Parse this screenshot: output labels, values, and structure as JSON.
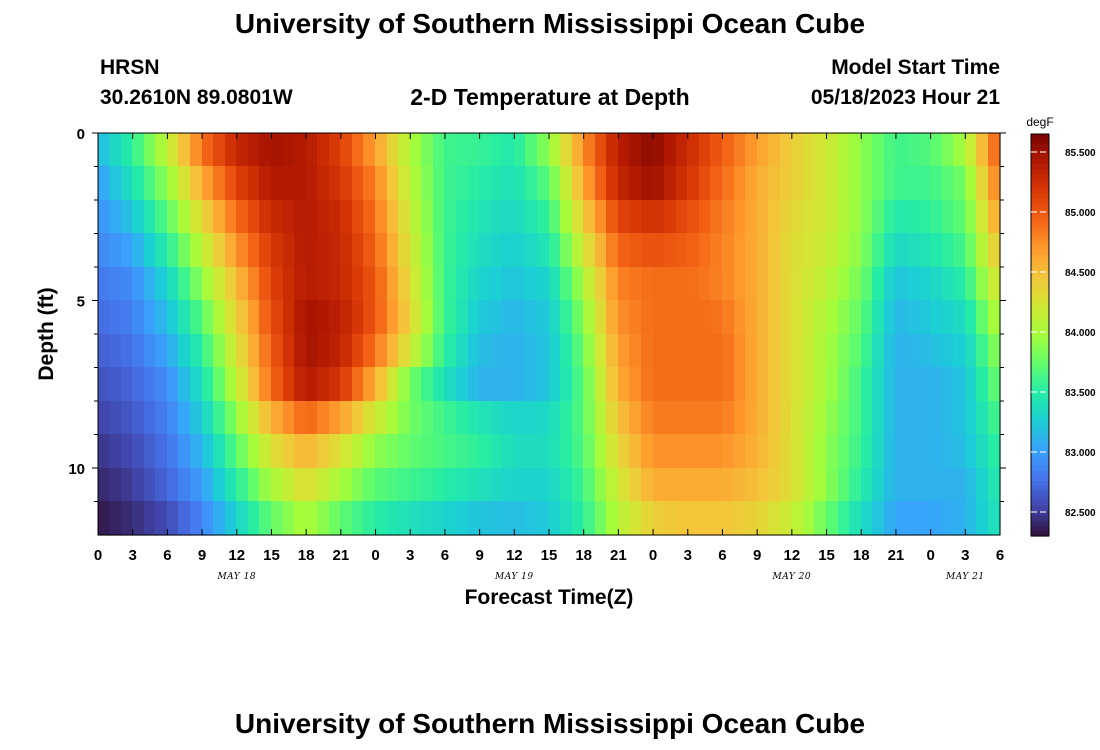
{
  "page": {
    "title_top": "University of Southern Mississippi Ocean Cube",
    "title_bottom": "University of Southern Mississippi Ocean Cube",
    "station": "HRSN",
    "location": "30.2610N  89.0801W",
    "model_start_label": "Model Start Time",
    "model_start_value": "05/18/2023 Hour 21"
  },
  "chart_data": {
    "type": "heatmap",
    "title": "2-D Temperature at Depth",
    "xlabel": "Forecast Time(Z)",
    "ylabel": "Depth (ft)",
    "x_tick_labels": [
      "0",
      "3",
      "6",
      "9",
      "12",
      "15",
      "18",
      "21",
      "0",
      "3",
      "6",
      "9",
      "12",
      "15",
      "18",
      "21",
      "0",
      "3",
      "6",
      "9",
      "12",
      "15",
      "18",
      "21",
      "0",
      "3",
      "6"
    ],
    "x_range_hours": [
      0,
      78
    ],
    "x_tick_step_hours": 3,
    "date_labels": [
      {
        "label": "MAY 18",
        "hour": 12
      },
      {
        "label": "MAY 19",
        "hour": 36
      },
      {
        "label": "MAY 20",
        "hour": 60
      },
      {
        "label": "MAY 21",
        "hour": 75
      }
    ],
    "y_range_ft": [
      0,
      12
    ],
    "y_tick_labels": [
      {
        "label": "0",
        "depth": 0
      },
      {
        "label": "5",
        "depth": 5
      },
      {
        "label": "10",
        "depth": 10
      }
    ],
    "y_minor_depths": [
      1,
      2,
      3,
      4,
      6,
      7,
      8,
      9,
      11
    ],
    "colorbar": {
      "unit": "degF",
      "range": [
        82.3,
        85.65
      ],
      "tick_labels": [
        "82.500",
        "83.000",
        "83.500",
        "84.000",
        "84.500",
        "85.000",
        "85.500"
      ],
      "tick_values": [
        82.5,
        83.0,
        83.5,
        84.0,
        84.5,
        85.0,
        85.5
      ],
      "colormap": [
        "#30123b",
        "#4145ab",
        "#4675ed",
        "#39a2fc",
        "#1bcfd4",
        "#24eca6",
        "#61fc6c",
        "#a4fc3b",
        "#d1e834",
        "#f3c63a",
        "#fe9b2d",
        "#f36315",
        "#d93806",
        "#b11901",
        "#7a0402"
      ]
    },
    "time_keys": [
      0,
      3,
      6,
      9,
      12,
      15,
      18,
      21,
      24,
      27,
      30,
      33,
      36,
      39,
      42,
      45,
      48,
      51,
      54,
      57,
      60,
      63,
      66,
      69,
      72,
      75,
      78
    ],
    "depth_keys": [
      0,
      1.5,
      3,
      4.5,
      6,
      7.5,
      9,
      10.5,
      12
    ],
    "values": [
      [
        83.2,
        83.6,
        84.2,
        85.0,
        85.4,
        85.5,
        85.4,
        85.1,
        84.6,
        84.0,
        83.6,
        83.6,
        83.5,
        84.0,
        84.8,
        85.4,
        85.6,
        85.3,
        85.0,
        84.7,
        84.4,
        84.2,
        83.9,
        83.6,
        83.7,
        84.1,
        85.1
      ],
      [
        83.0,
        83.4,
        83.9,
        84.6,
        85.1,
        85.4,
        85.4,
        85.2,
        84.8,
        84.1,
        83.6,
        83.5,
        83.4,
        83.7,
        84.6,
        85.3,
        85.5,
        85.2,
        84.9,
        84.6,
        84.4,
        84.2,
        83.9,
        83.6,
        83.6,
        83.8,
        84.9
      ],
      [
        82.9,
        83.1,
        83.6,
        84.2,
        84.8,
        85.2,
        85.4,
        85.3,
        84.9,
        84.2,
        83.6,
        83.4,
        83.3,
        83.5,
        84.3,
        85.0,
        85.1,
        85.0,
        84.8,
        84.6,
        84.3,
        84.2,
        83.9,
        83.4,
        83.5,
        83.7,
        84.6
      ],
      [
        82.8,
        82.9,
        83.3,
        83.9,
        84.5,
        85.1,
        85.4,
        85.3,
        85.0,
        84.3,
        83.6,
        83.3,
        83.2,
        83.3,
        84.0,
        84.8,
        84.9,
        84.9,
        84.8,
        84.6,
        84.3,
        84.1,
        83.8,
        83.2,
        83.3,
        83.5,
        84.3
      ],
      [
        82.7,
        82.8,
        83.1,
        83.6,
        84.3,
        85.0,
        85.5,
        85.4,
        85.0,
        84.4,
        83.6,
        83.2,
        83.1,
        83.2,
        83.8,
        84.7,
        84.9,
        84.9,
        84.9,
        84.6,
        84.3,
        84.0,
        83.7,
        83.1,
        83.2,
        83.3,
        84.0
      ],
      [
        82.6,
        82.7,
        82.9,
        83.4,
        84.1,
        84.9,
        85.4,
        85.2,
        84.6,
        83.8,
        83.4,
        83.1,
        83.1,
        83.2,
        83.7,
        84.6,
        84.9,
        84.9,
        84.9,
        84.6,
        84.3,
        84.0,
        83.6,
        83.1,
        83.1,
        83.2,
        83.8
      ],
      [
        82.5,
        82.6,
        82.8,
        83.2,
        83.8,
        84.4,
        84.7,
        84.4,
        84.0,
        83.8,
        83.7,
        83.6,
        83.4,
        83.4,
        83.7,
        84.4,
        84.8,
        84.8,
        84.8,
        84.6,
        84.3,
        83.9,
        83.6,
        83.1,
        83.1,
        83.2,
        83.6
      ],
      [
        82.4,
        82.5,
        82.7,
        83.0,
        83.5,
        84.0,
        84.3,
        84.0,
        83.7,
        83.6,
        83.5,
        83.4,
        83.3,
        83.3,
        83.6,
        84.2,
        84.6,
        84.6,
        84.6,
        84.5,
        84.3,
        83.9,
        83.5,
        83.1,
        83.1,
        83.1,
        83.5
      ],
      [
        82.3,
        82.4,
        82.5,
        82.8,
        83.2,
        83.6,
        83.9,
        83.6,
        83.4,
        83.3,
        83.2,
        83.1,
        83.1,
        83.2,
        83.5,
        84.0,
        84.3,
        84.4,
        84.4,
        84.3,
        84.1,
        83.7,
        83.3,
        83.0,
        83.0,
        83.1,
        83.4
      ]
    ]
  }
}
